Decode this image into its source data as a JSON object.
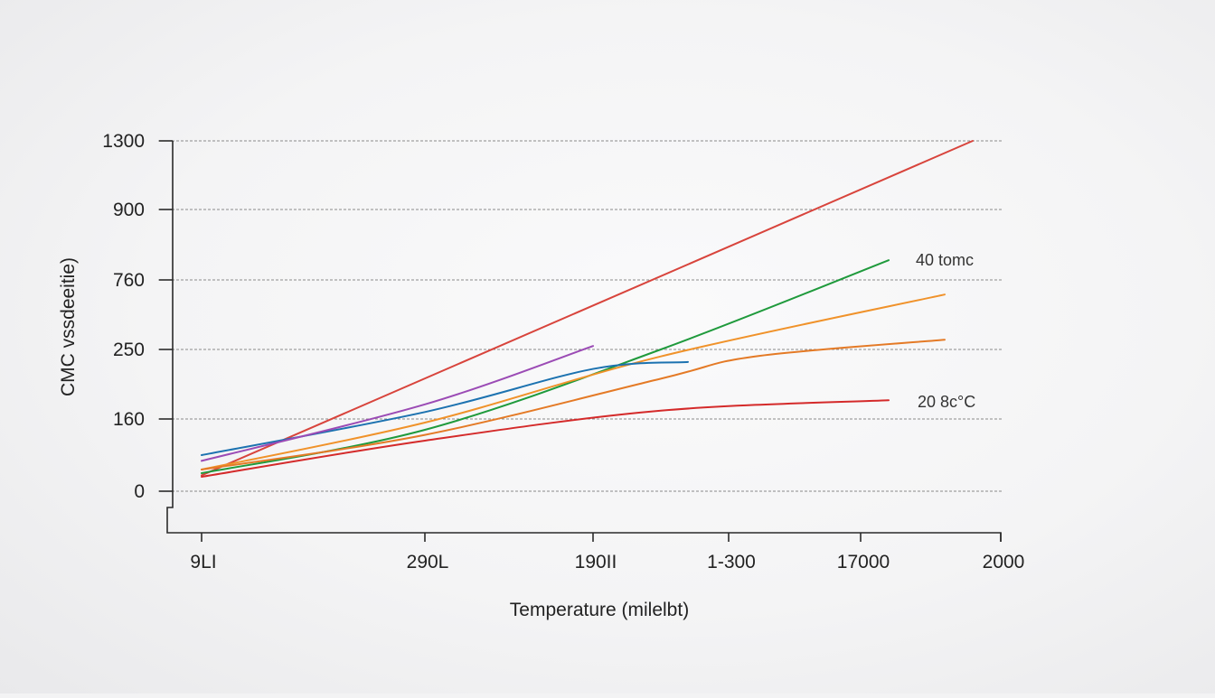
{
  "chart_data": {
    "type": "line",
    "title": "",
    "xlabel": "Temperature (milelbt)",
    "ylabel": "CMC vssdeeitie)",
    "x_tick_labels": [
      "9LI",
      "290L",
      "190II",
      "1-300",
      "17000",
      "2000"
    ],
    "y_tick_labels": [
      "0",
      "160",
      "250",
      "760",
      "900",
      "1300"
    ],
    "xlim": [
      0,
      5
    ],
    "ylim": [
      0,
      5
    ],
    "grid": true,
    "annotations": [
      {
        "text": "40 tomc",
        "x": 4.2,
        "y": 3.28
      },
      {
        "text": "20 8c°C",
        "x": 4.2,
        "y": 1.27
      }
    ],
    "series": [
      {
        "color": "#d8443c",
        "x": [
          0,
          4.8
        ],
        "y": [
          0.22,
          5.0
        ]
      },
      {
        "color": "#1f9a3c",
        "x": [
          0,
          1,
          2.5,
          4.2
        ],
        "y": [
          0.25,
          0.85,
          2.0,
          3.28
        ]
      },
      {
        "color": "#f0922a",
        "x": [
          0,
          1,
          2.5,
          4.6
        ],
        "y": [
          0.3,
          0.95,
          1.9,
          2.79
        ]
      },
      {
        "color": "#e47a26",
        "x": [
          0,
          1,
          2.5,
          3.2,
          4.6
        ],
        "y": [
          0.3,
          0.78,
          1.58,
          1.9,
          2.14
        ]
      },
      {
        "color": "#1c72b0",
        "x": [
          0,
          1,
          2.0,
          2.7
        ],
        "y": [
          0.5,
          1.1,
          1.72,
          1.82
        ]
      },
      {
        "color": "#9b4bb5",
        "x": [
          0,
          1,
          2.0
        ],
        "y": [
          0.42,
          1.21,
          2.05
        ]
      },
      {
        "color": "#d42a2a",
        "x": [
          0,
          1,
          2.5,
          4.2
        ],
        "y": [
          0.2,
          0.7,
          1.12,
          1.27
        ]
      }
    ]
  }
}
